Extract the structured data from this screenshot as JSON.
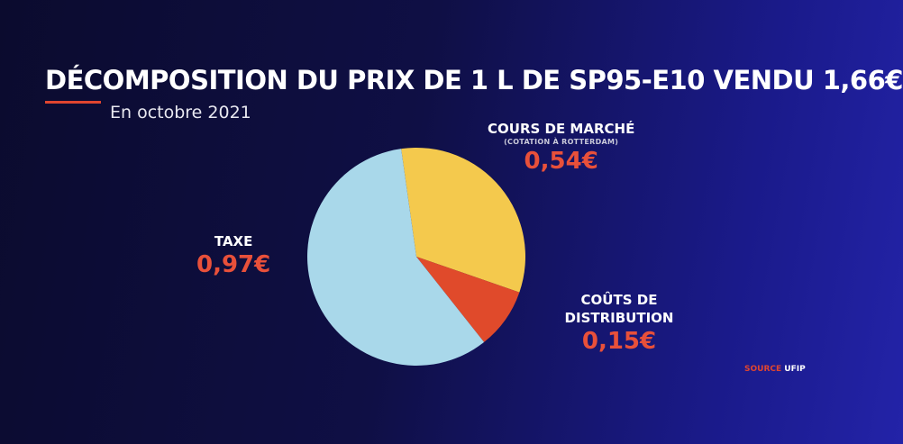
{
  "chart_data": {
    "type": "pie",
    "title": "DÉCOMPOSITION DU PRIX DE 1 L DE SP95-E10 VENDU 1,66€",
    "subtitle": "En octobre 2021",
    "total": 1.66,
    "slices": [
      {
        "name": "TAXE",
        "note": "",
        "value": 0.97,
        "value_label": "0,97€",
        "color": "#a9d8ea"
      },
      {
        "name": "COURS DE MARCHÉ",
        "note": "(COTATION À ROTTERDAM)",
        "value": 0.54,
        "value_label": "0,54€",
        "color": "#f4c94d"
      },
      {
        "name": "COÛTS DE DISTRIBUTION",
        "note": "",
        "value": 0.15,
        "value_label": "0,15€",
        "color": "#e04a2b"
      }
    ]
  },
  "source": {
    "key": "SOURCE",
    "value": "UFIP"
  },
  "colors": {
    "accent": "#e0452f",
    "background": "#0f0f45"
  }
}
